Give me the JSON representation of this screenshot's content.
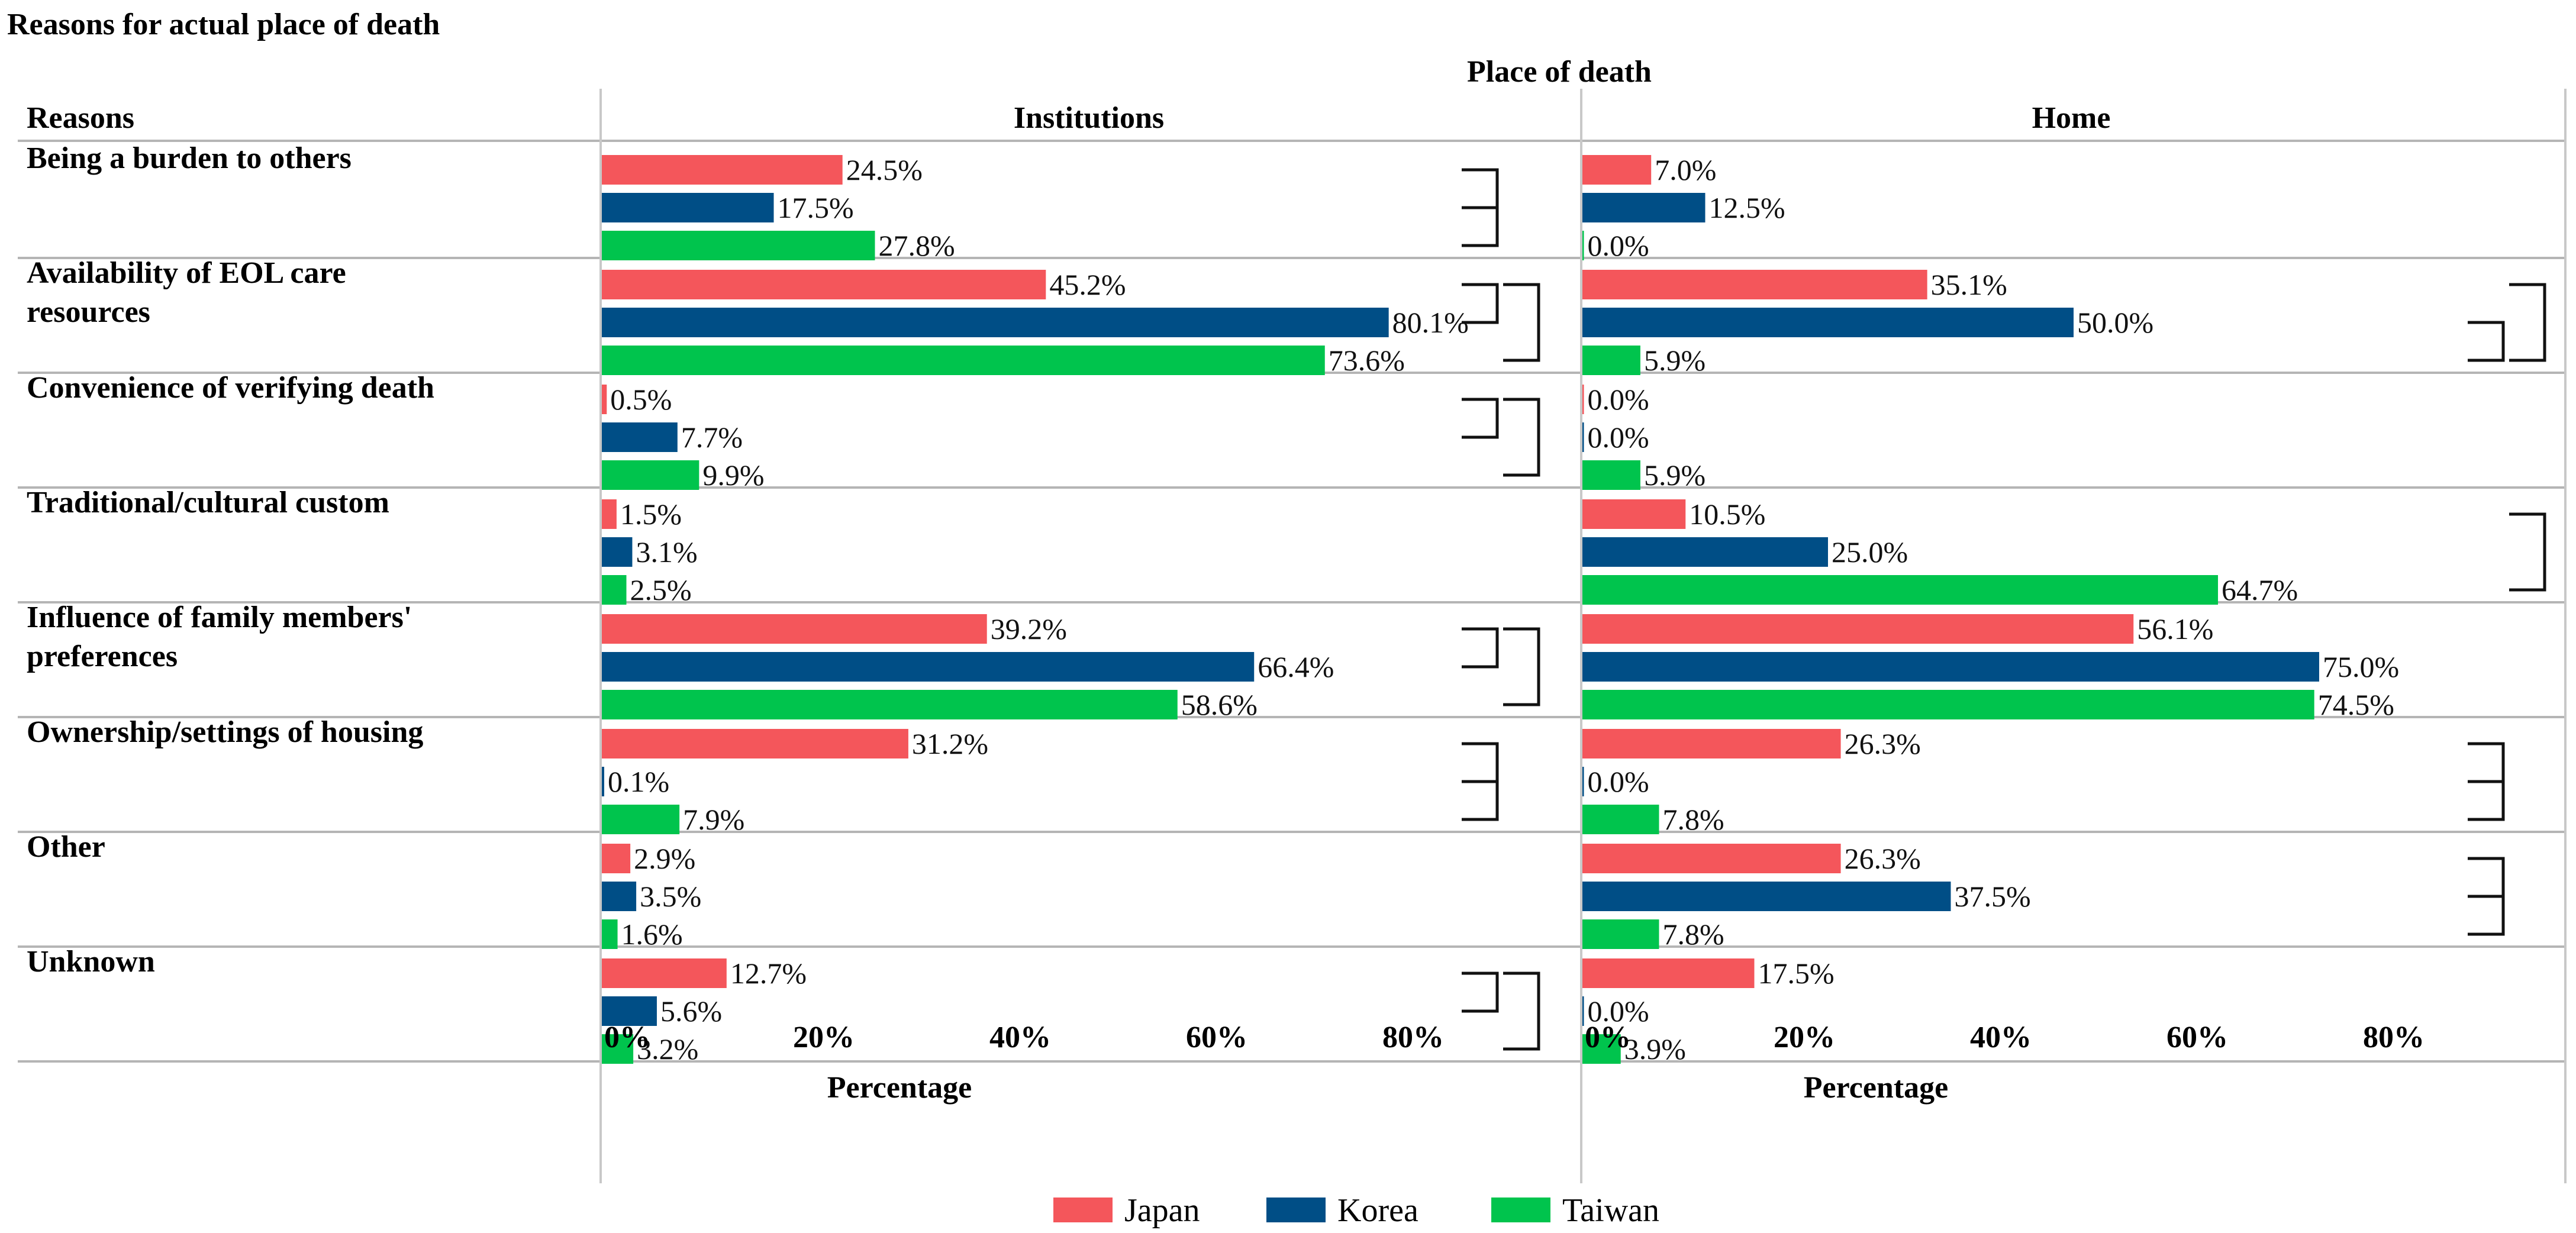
{
  "chart_data": {
    "type": "bar",
    "orientation": "horizontal",
    "title": "Reasons for actual place of death",
    "group_header": "Place of death",
    "row_header": "Reasons",
    "xlabel": "Percentage",
    "xlim": [
      0,
      100
    ],
    "ticks": [
      "0%",
      "20%",
      "40%",
      "60%",
      "80%"
    ],
    "tick_values": [
      0,
      20,
      40,
      60,
      80
    ],
    "panels": [
      "Institutions",
      "Home"
    ],
    "legend": [
      {
        "name": "Japan",
        "color": "#f4565b"
      },
      {
        "name": "Korea",
        "color": "#004e86"
      },
      {
        "name": "Taiwan",
        "color": "#00c44d"
      }
    ],
    "categories": [
      {
        "label": [
          "Being a burden to others"
        ],
        "institutions": [
          24.5,
          17.5,
          27.8
        ],
        "home": [
          7.0,
          12.5,
          0.0
        ]
      },
      {
        "label": [
          "Availability of EOL care",
          "resources"
        ],
        "institutions": [
          45.2,
          80.1,
          73.6
        ],
        "home": [
          35.1,
          50.0,
          5.9
        ]
      },
      {
        "label": [
          "Convenience of verifying death"
        ],
        "institutions": [
          0.5,
          7.7,
          9.9
        ],
        "home": [
          0.0,
          0.0,
          5.9
        ]
      },
      {
        "label": [
          "Traditional/cultural custom"
        ],
        "institutions": [
          1.5,
          3.1,
          2.5
        ],
        "home": [
          10.5,
          25.0,
          64.7
        ]
      },
      {
        "label": [
          "Influence of family members'",
          "preferences"
        ],
        "institutions": [
          39.2,
          66.4,
          58.6
        ],
        "home": [
          56.1,
          75.0,
          74.5
        ]
      },
      {
        "label": [
          "Ownership/settings of housing"
        ],
        "institutions": [
          31.2,
          0.1,
          7.9
        ],
        "home": [
          26.3,
          0.0,
          7.8
        ]
      },
      {
        "label": [
          "Other"
        ],
        "institutions": [
          2.9,
          3.5,
          1.6
        ],
        "home": [
          26.3,
          37.5,
          7.8
        ]
      },
      {
        "label": [
          "Unknown"
        ],
        "institutions": [
          12.7,
          5.6,
          3.2
        ],
        "home": [
          17.5,
          0.0,
          3.9
        ]
      }
    ],
    "significance_brackets": {
      "institutions": [
        [
          [
            0,
            0,
            1
          ],
          [
            0,
            1,
            2
          ]
        ],
        [
          [
            1,
            0,
            1
          ],
          [
            1,
            0,
            2
          ]
        ],
        [
          [
            2,
            0,
            1
          ],
          [
            2,
            0,
            2
          ]
        ],
        [],
        [
          [
            4,
            0,
            1
          ],
          [
            4,
            0,
            2
          ]
        ],
        [
          [
            5,
            0,
            1
          ],
          [
            5,
            1,
            2
          ]
        ],
        [],
        [
          [
            7,
            0,
            1
          ],
          [
            7,
            0,
            2
          ]
        ]
      ],
      "home": [
        [],
        [
          [
            1,
            1,
            2
          ],
          [
            1,
            0,
            2
          ]
        ],
        [],
        [
          [
            3,
            0,
            2
          ]
        ],
        [],
        [
          [
            5,
            0,
            1
          ],
          [
            5,
            1,
            2
          ]
        ],
        [
          [
            6,
            0,
            1
          ],
          [
            6,
            1,
            2
          ]
        ],
        []
      ]
    }
  }
}
